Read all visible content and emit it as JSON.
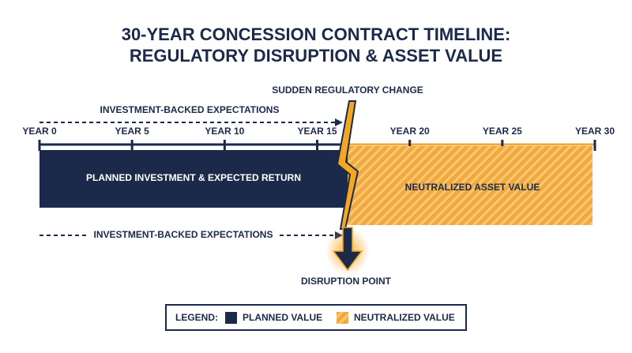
{
  "title": [
    "30-YEAR CONCESSION CONTRACT TIMELINE:",
    "REGULATORY DISRUPTION & ASSET VALUE"
  ],
  "annotations": {
    "change": "SUDDEN REGULATORY CHANGE",
    "expectations_top": "INVESTMENT-BACKED EXPECTATIONS",
    "expectations_bottom": "INVESTMENT-BACKED EXPECTATIONS",
    "disruption": "DISRUPTION POINT"
  },
  "timeline": {
    "labels": [
      "YEAR 0",
      "YEAR 5",
      "YEAR 10",
      "YEAR 15",
      "YEAR 20",
      "YEAR 25",
      "YEAR 30"
    ]
  },
  "blocks": {
    "planned": "PLANNED INVESTMENT & EXPECTED RETURN",
    "neutralized": "NEUTRALIZED ASSET VALUE"
  },
  "legend": {
    "title": "LEGEND:",
    "items": [
      "PLANNED VALUE",
      "NEUTRALIZED VALUE"
    ]
  }
}
